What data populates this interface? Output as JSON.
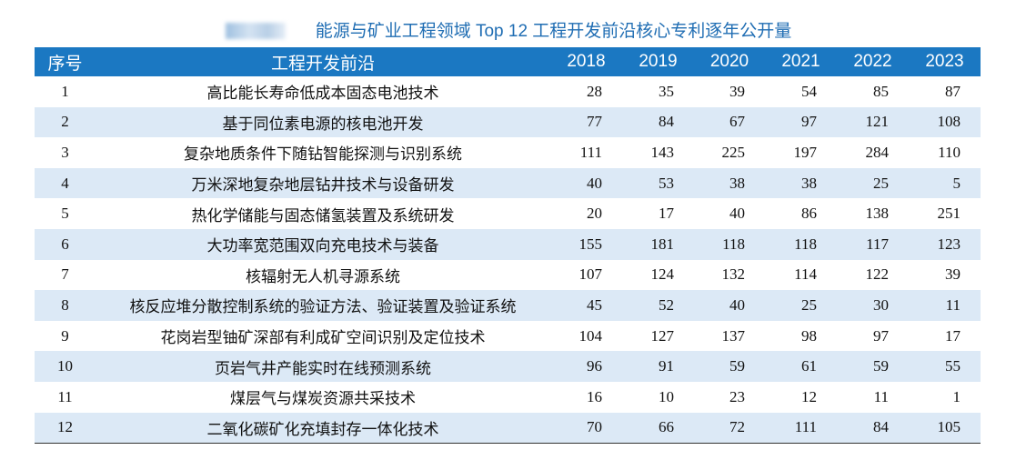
{
  "title": "能源与矿业工程领域 Top 12 工程开发前沿核心专利逐年公开量",
  "table": {
    "header": [
      "序号",
      "工程开发前沿",
      "2018",
      "2019",
      "2020",
      "2021",
      "2022",
      "2023"
    ],
    "rows": [
      [
        1,
        "高比能长寿命低成本固态电池技术",
        28,
        35,
        39,
        54,
        85,
        87
      ],
      [
        2,
        "基于同位素电源的核电池开发",
        77,
        84,
        67,
        97,
        121,
        108
      ],
      [
        3,
        "复杂地质条件下随钻智能探测与识别系统",
        111,
        143,
        225,
        197,
        284,
        110
      ],
      [
        4,
        "万米深地复杂地层钻井技术与设备研发",
        40,
        53,
        38,
        38,
        25,
        5
      ],
      [
        5,
        "热化学储能与固态储氢装置及系统研发",
        20,
        17,
        40,
        86,
        138,
        251
      ],
      [
        6,
        "大功率宽范围双向充电技术与装备",
        155,
        181,
        118,
        118,
        117,
        123
      ],
      [
        7,
        "核辐射无人机寻源系统",
        107,
        124,
        132,
        114,
        122,
        39
      ],
      [
        8,
        "核反应堆分散控制系统的验证方法、验证装置及验证系统",
        45,
        52,
        40,
        25,
        30,
        11
      ],
      [
        9,
        "花岗岩型铀矿深部有利成矿空间识别及定位技术",
        104,
        127,
        137,
        98,
        97,
        17
      ],
      [
        10,
        "页岩气井产能实时在线预测系统",
        96,
        91,
        59,
        61,
        59,
        55
      ],
      [
        11,
        "煤层气与煤炭资源共采技术",
        16,
        10,
        23,
        12,
        11,
        1
      ],
      [
        12,
        "二氧化碳矿化充填封存一体化技术",
        70,
        66,
        72,
        111,
        84,
        105
      ]
    ]
  }
}
